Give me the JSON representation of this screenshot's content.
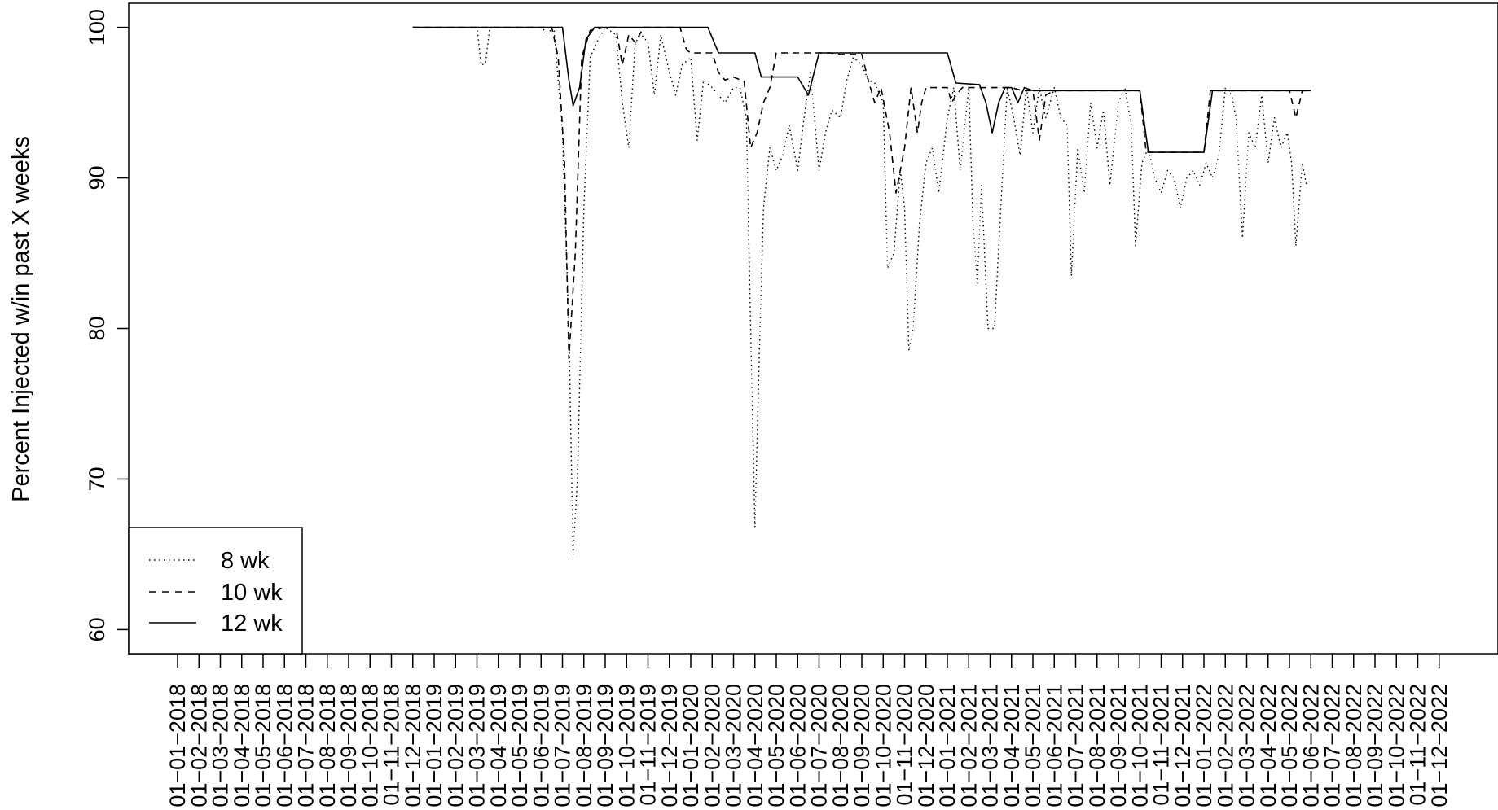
{
  "chart_data": {
    "type": "line",
    "title": "",
    "xlabel": "",
    "ylabel": "Percent Injected w/in past X weeks",
    "ylim": [
      58.4,
      101.6
    ],
    "yticks": [
      60,
      70,
      80,
      90,
      100
    ],
    "x_tick_labels": [
      "01−01−2018",
      "01−02−2018",
      "01−03−2018",
      "01−04−2018",
      "01−05−2018",
      "01−06−2018",
      "01−07−2018",
      "01−08−2018",
      "01−09−2018",
      "01−10−2018",
      "01−11−2018",
      "01−12−2018",
      "01−01−2019",
      "01−02−2019",
      "01−03−2019",
      "01−04−2019",
      "01−05−2019",
      "01−06−2019",
      "01−07−2019",
      "01−08−2019",
      "01−09−2019",
      "01−10−2019",
      "01−11−2019",
      "01−12−2019",
      "01−01−2020",
      "01−02−2020",
      "01−03−2020",
      "01−04−2020",
      "01−05−2020",
      "01−06−2020",
      "01−07−2020",
      "01−08−2020",
      "01−09−2020",
      "01−10−2020",
      "01−11−2020",
      "01−12−2020",
      "01−01−2021",
      "01−02−2021",
      "01−03−2021",
      "01−04−2021",
      "01−05−2021",
      "01−06−2021",
      "01−07−2021",
      "01−08−2021",
      "01−09−2021",
      "01−10−2021",
      "01−11−2021",
      "01−12−2021",
      "01−01−2022",
      "01−02−2022",
      "01−03−2022",
      "01−04−2022",
      "01−05−2022",
      "01−06−2022",
      "01−07−2022",
      "01−08−2022",
      "01−09−2022",
      "01−10−2022",
      "01−11−2022",
      "01−12−2022"
    ],
    "legend": {
      "placement": "bottom-left",
      "entries": [
        "8 wk",
        "10 wk",
        "12 wk"
      ]
    },
    "series": [
      {
        "name": "8 wk",
        "style": "dotted",
        "points": [
          [
            11.0,
            100
          ],
          [
            14.0,
            100
          ],
          [
            14.2,
            97.5
          ],
          [
            14.4,
            97.6
          ],
          [
            14.6,
            100
          ],
          [
            16.5,
            100
          ],
          [
            17.0,
            100
          ],
          [
            17.3,
            99.6
          ],
          [
            17.6,
            100
          ],
          [
            18.0,
            93
          ],
          [
            18.3,
            80
          ],
          [
            18.5,
            65
          ],
          [
            18.7,
            70
          ],
          [
            19.0,
            88
          ],
          [
            19.3,
            98
          ],
          [
            19.6,
            99
          ],
          [
            20.0,
            100
          ],
          [
            20.5,
            99.5
          ],
          [
            20.8,
            95
          ],
          [
            21.1,
            92
          ],
          [
            21.4,
            99
          ],
          [
            21.7,
            99.5
          ],
          [
            22.0,
            99
          ],
          [
            22.3,
            95.5
          ],
          [
            22.6,
            99.5
          ],
          [
            23.0,
            97
          ],
          [
            23.3,
            95.5
          ],
          [
            23.6,
            97.5
          ],
          [
            24.0,
            98
          ],
          [
            24.3,
            92.5
          ],
          [
            24.6,
            96.5
          ],
          [
            25.0,
            96
          ],
          [
            25.3,
            95.5
          ],
          [
            25.6,
            95
          ],
          [
            26.0,
            96
          ],
          [
            26.3,
            96
          ],
          [
            26.6,
            94
          ],
          [
            26.8,
            80
          ],
          [
            27.0,
            66.8
          ],
          [
            27.2,
            78
          ],
          [
            27.4,
            88
          ],
          [
            27.7,
            92
          ],
          [
            28.0,
            90.5
          ],
          [
            28.3,
            91.5
          ],
          [
            28.6,
            93.5
          ],
          [
            29.0,
            90.5
          ],
          [
            29.3,
            94
          ],
          [
            29.6,
            97
          ],
          [
            30.0,
            90.5
          ],
          [
            30.3,
            93
          ],
          [
            30.6,
            94.5
          ],
          [
            31.0,
            94
          ],
          [
            31.3,
            96.5
          ],
          [
            31.6,
            98
          ],
          [
            32.0,
            97.5
          ],
          [
            32.3,
            96.5
          ],
          [
            32.6,
            96.3
          ],
          [
            33.0,
            95
          ],
          [
            33.2,
            84
          ],
          [
            33.5,
            85
          ],
          [
            33.8,
            90.5
          ],
          [
            34.0,
            88
          ],
          [
            34.2,
            78.5
          ],
          [
            34.4,
            80
          ],
          [
            34.7,
            87
          ],
          [
            35.0,
            91
          ],
          [
            35.3,
            92
          ],
          [
            35.6,
            89
          ],
          [
            36.0,
            94
          ],
          [
            36.3,
            96
          ],
          [
            36.6,
            90.5
          ],
          [
            37.0,
            96
          ],
          [
            37.2,
            87
          ],
          [
            37.4,
            83
          ],
          [
            37.6,
            89.5
          ],
          [
            37.9,
            80
          ],
          [
            38.2,
            80
          ],
          [
            38.5,
            88
          ],
          [
            38.8,
            96
          ],
          [
            39.1,
            94
          ],
          [
            39.4,
            91.5
          ],
          [
            39.7,
            96
          ],
          [
            40.0,
            93
          ],
          [
            40.3,
            96
          ],
          [
            40.6,
            94
          ],
          [
            41.0,
            96
          ],
          [
            41.3,
            94
          ],
          [
            41.6,
            93.5
          ],
          [
            41.8,
            83.5
          ],
          [
            42.1,
            92
          ],
          [
            42.4,
            89
          ],
          [
            42.7,
            95
          ],
          [
            43.0,
            92
          ],
          [
            43.3,
            94.5
          ],
          [
            43.6,
            89.5
          ],
          [
            44.0,
            95
          ],
          [
            44.3,
            96
          ],
          [
            44.6,
            93.5
          ],
          [
            44.8,
            85.5
          ],
          [
            45.1,
            91
          ],
          [
            45.4,
            92
          ],
          [
            45.7,
            90
          ],
          [
            46.0,
            89
          ],
          [
            46.3,
            90.5
          ],
          [
            46.6,
            90
          ],
          [
            46.9,
            88
          ],
          [
            47.2,
            90
          ],
          [
            47.5,
            90.5
          ],
          [
            47.8,
            89.5
          ],
          [
            48.1,
            91
          ],
          [
            48.4,
            90
          ],
          [
            48.7,
            91.5
          ],
          [
            49.0,
            96
          ],
          [
            49.3,
            95.5
          ],
          [
            49.5,
            94
          ],
          [
            49.8,
            86
          ],
          [
            50.1,
            93
          ],
          [
            50.4,
            92
          ],
          [
            50.7,
            95.5
          ],
          [
            51.0,
            91
          ],
          [
            51.3,
            94
          ],
          [
            51.6,
            92
          ],
          [
            51.9,
            93
          ],
          [
            52.1,
            91
          ],
          [
            52.3,
            85.5
          ],
          [
            52.6,
            91
          ],
          [
            52.8,
            89.5
          ]
        ]
      },
      {
        "name": "10 wk",
        "style": "dashed",
        "points": [
          [
            11.0,
            100
          ],
          [
            17.5,
            100
          ],
          [
            17.8,
            98
          ],
          [
            18.1,
            91
          ],
          [
            18.3,
            78
          ],
          [
            18.6,
            85
          ],
          [
            18.9,
            98
          ],
          [
            19.3,
            99.8
          ],
          [
            20.0,
            100
          ],
          [
            20.5,
            100
          ],
          [
            20.8,
            97.5
          ],
          [
            21.1,
            99.5
          ],
          [
            21.4,
            99
          ],
          [
            21.8,
            100
          ],
          [
            23.5,
            100
          ],
          [
            23.8,
            98.5
          ],
          [
            24.0,
            98.3
          ],
          [
            25.0,
            98.3
          ],
          [
            25.3,
            97
          ],
          [
            25.6,
            96.5
          ],
          [
            26.0,
            96.7
          ],
          [
            26.5,
            96.4
          ],
          [
            26.8,
            92
          ],
          [
            27.1,
            93
          ],
          [
            27.4,
            95
          ],
          [
            27.7,
            96
          ],
          [
            28.0,
            98.3
          ],
          [
            30.5,
            98.3
          ],
          [
            31.0,
            98.2
          ],
          [
            32.0,
            98.2
          ],
          [
            32.3,
            96.5
          ],
          [
            32.6,
            95
          ],
          [
            32.9,
            96
          ],
          [
            33.3,
            93
          ],
          [
            33.6,
            89
          ],
          [
            34.0,
            92
          ],
          [
            34.3,
            96
          ],
          [
            34.6,
            93
          ],
          [
            34.8,
            95
          ],
          [
            35.0,
            96
          ],
          [
            36.0,
            96
          ],
          [
            36.2,
            95
          ],
          [
            36.4,
            95.5
          ],
          [
            36.7,
            96
          ],
          [
            39.0,
            96
          ],
          [
            39.5,
            95.8
          ],
          [
            40.0,
            95.8
          ],
          [
            40.3,
            92.5
          ],
          [
            40.6,
            95.5
          ],
          [
            41.0,
            95.8
          ],
          [
            45.0,
            95.8
          ],
          [
            45.3,
            91.7
          ],
          [
            48.0,
            91.7
          ],
          [
            48.3,
            95.8
          ],
          [
            52.0,
            95.8
          ],
          [
            52.3,
            94
          ],
          [
            52.6,
            95.8
          ],
          [
            53.0,
            95.8
          ]
        ]
      },
      {
        "name": "12 wk",
        "style": "solid",
        "points": [
          [
            11.0,
            100
          ],
          [
            18.0,
            100
          ],
          [
            18.3,
            96.5
          ],
          [
            18.5,
            94.8
          ],
          [
            18.8,
            96
          ],
          [
            19.1,
            99.2
          ],
          [
            19.5,
            100
          ],
          [
            24.8,
            100
          ],
          [
            25.3,
            98.3
          ],
          [
            27.0,
            98.3
          ],
          [
            27.3,
            96.7
          ],
          [
            29.0,
            96.7
          ],
          [
            29.5,
            95.5
          ],
          [
            30.0,
            98.3
          ],
          [
            35.0,
            98.3
          ],
          [
            36.0,
            98.3
          ],
          [
            36.4,
            96.3
          ],
          [
            37.5,
            96.2
          ],
          [
            37.8,
            95
          ],
          [
            38.1,
            93
          ],
          [
            38.4,
            95
          ],
          [
            38.7,
            96
          ],
          [
            39.0,
            96
          ],
          [
            39.3,
            95
          ],
          [
            39.6,
            96
          ],
          [
            40.0,
            95.8
          ],
          [
            45.0,
            95.8
          ],
          [
            45.4,
            91.7
          ],
          [
            48.0,
            91.7
          ],
          [
            48.4,
            95.8
          ],
          [
            53.0,
            95.8
          ]
        ]
      }
    ]
  }
}
